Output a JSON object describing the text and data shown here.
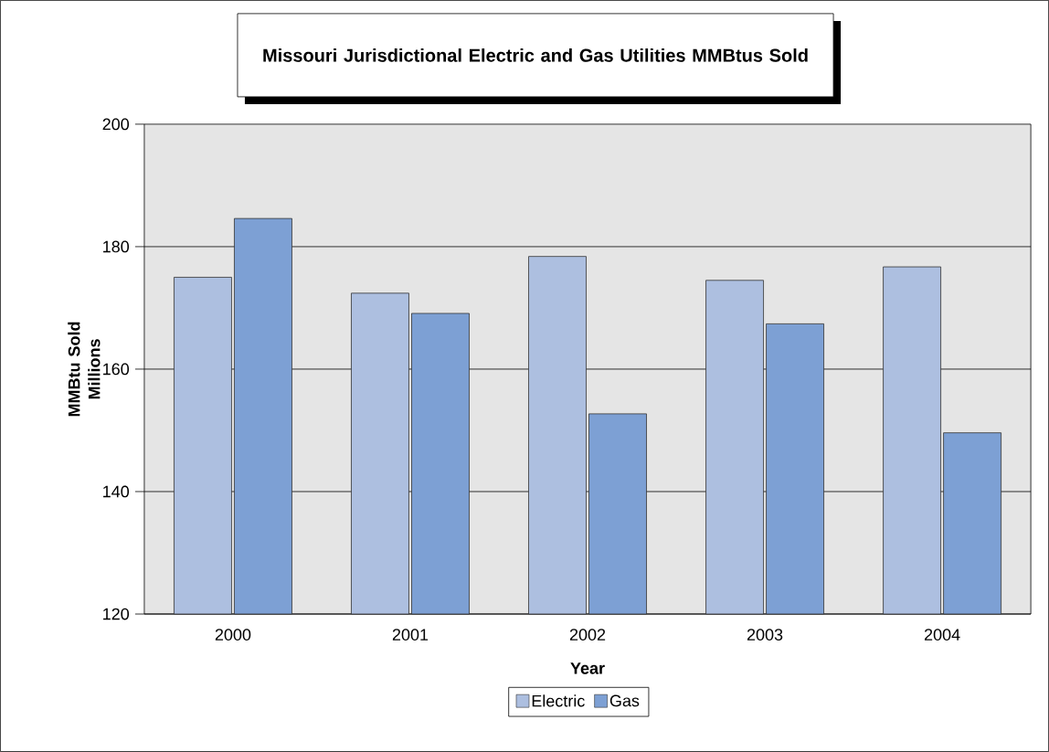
{
  "chart_data": {
    "type": "bar",
    "title": "Missouri Jurisdictional Electric and Gas Utilities MMBtus Sold",
    "xlabel": "Year",
    "ylabel": "MMBtu Sold Millions",
    "categories": [
      "2000",
      "2001",
      "2002",
      "2003",
      "2004"
    ],
    "series": [
      {
        "name": "Electric",
        "color": "#adbfe0",
        "values": [
          175.0,
          172.4,
          178.4,
          174.5,
          176.7
        ]
      },
      {
        "name": "Gas",
        "color": "#7da0d4",
        "values": [
          184.6,
          169.1,
          152.7,
          167.4,
          149.6
        ]
      }
    ],
    "ylim": [
      120,
      200
    ],
    "yticks": [
      120,
      140,
      160,
      180,
      200
    ],
    "grid": "y",
    "legend": "bottom"
  }
}
